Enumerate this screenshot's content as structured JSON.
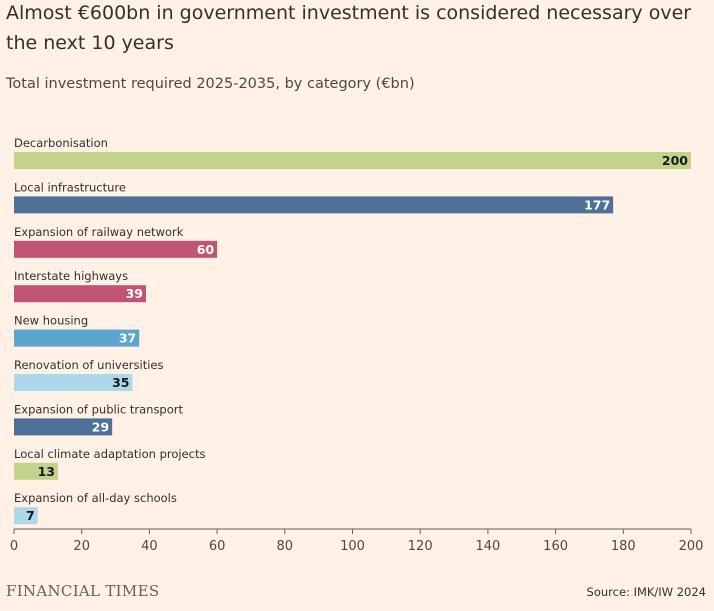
{
  "header": {
    "title": "Almost €600bn in government investment is considered necessary over the next 10 years",
    "subtitle": "Total investment required 2025-2035, by category (€bn)"
  },
  "footer": {
    "brand": "FINANCIAL TIMES",
    "source": "Source: IMK/IW 2024"
  },
  "colors": {
    "background": "#fff1e5",
    "axis": "#66605c",
    "label_dark": "#1a1a1a",
    "label_light": "#ffffff"
  },
  "chart_data": {
    "type": "bar",
    "orientation": "horizontal",
    "title": "Almost €600bn in government investment is considered necessary over the next 10 years",
    "subtitle": "Total investment required 2025-2035, by category (€bn)",
    "xlabel": "",
    "ylabel": "",
    "xlim": [
      0,
      200
    ],
    "x_ticks": [
      0,
      20,
      40,
      60,
      80,
      100,
      120,
      140,
      160,
      180,
      200
    ],
    "grid": false,
    "categories": [
      "Decarbonisation",
      "Local infrastructure",
      "Expansion of railway network",
      "Interstate highways",
      "New housing",
      "Renovation of universities",
      "Expansion of public transport",
      "Local climate adaptation projects",
      "Expansion of all-day schools"
    ],
    "values": [
      200,
      177,
      60,
      39,
      37,
      35,
      29,
      13,
      7
    ],
    "bar_colors": [
      "#c2d48b",
      "#4e7097",
      "#bf5474",
      "#bf5474",
      "#5ba5d1",
      "#aed8ea",
      "#4e7097",
      "#c2d48b",
      "#aed8ea"
    ],
    "label_colors": [
      "#1a1a1a",
      "#ffffff",
      "#ffffff",
      "#ffffff",
      "#ffffff",
      "#1a1a1a",
      "#ffffff",
      "#1a1a1a",
      "#1a1a1a"
    ]
  }
}
